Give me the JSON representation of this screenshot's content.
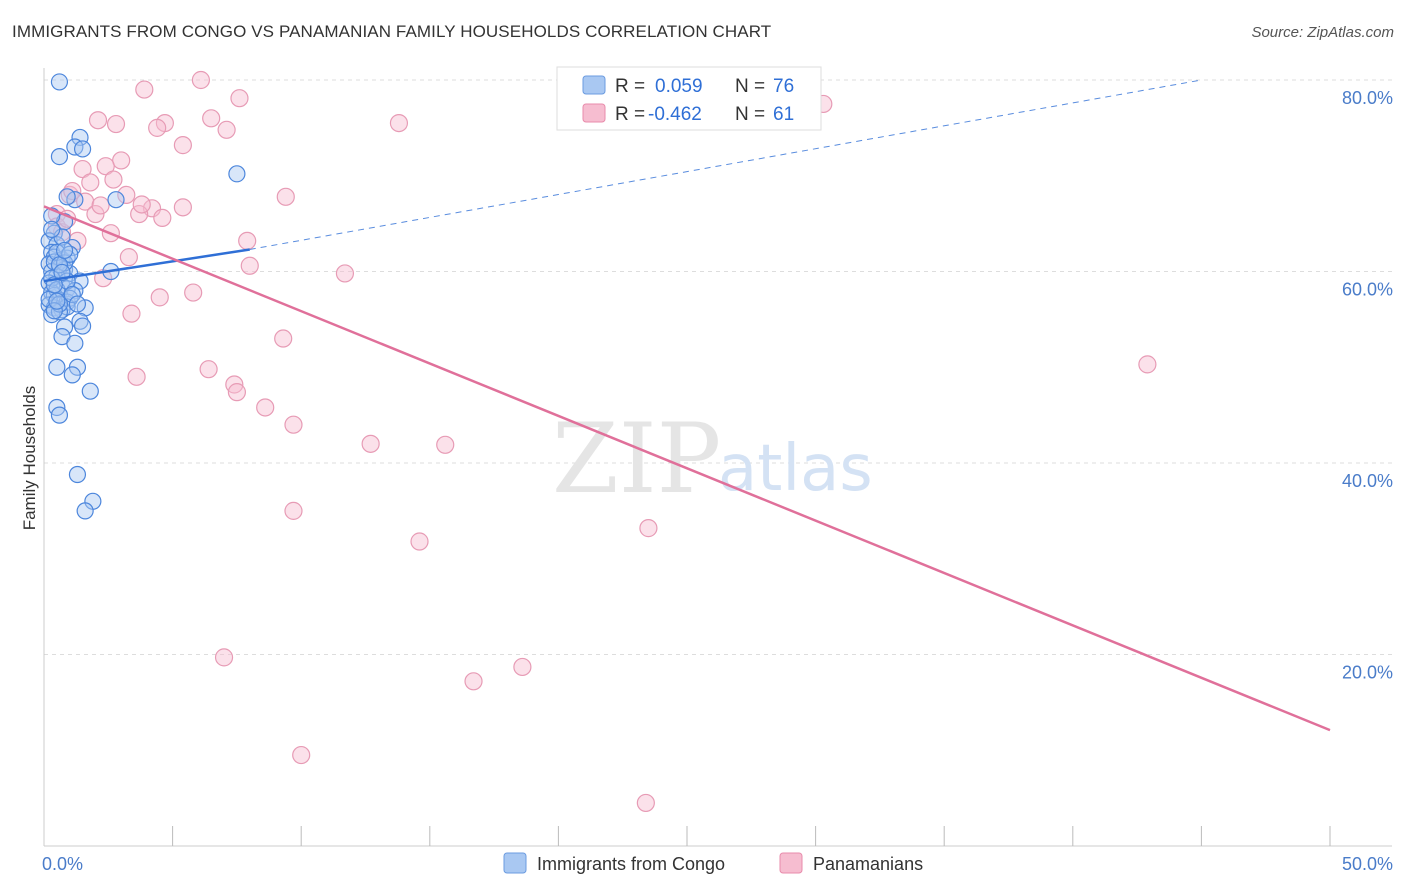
{
  "header": {
    "title": "IMMIGRANTS FROM CONGO VS PANAMANIAN FAMILY HOUSEHOLDS CORRELATION CHART",
    "source": "Source: ZipAtlas.com"
  },
  "watermark": {
    "zip": "ZIP",
    "atlas": "atlas"
  },
  "colors": {
    "blue": "#2f6fd6",
    "blue_fill": "#a9c8f2",
    "pink": "#e0709a",
    "pink_fill": "#f6bdd0",
    "grid": "#dddddd",
    "axis_text": "#4a7cc9"
  },
  "legend": {
    "r_label": "R =",
    "n_label": "N =",
    "rows": [
      {
        "r": "0.059",
        "n": "76"
      },
      {
        "r": "-0.462",
        "n": "61"
      }
    ]
  },
  "bottom_legend": [
    "Immigrants from Congo",
    "Panamanians"
  ],
  "chart_data": {
    "type": "scatter",
    "title": "IMMIGRANTS FROM CONGO VS PANAMANIAN FAMILY HOUSEHOLDS CORRELATION CHART",
    "xlabel": "",
    "ylabel": "Family Households",
    "xlim": [
      0,
      50
    ],
    "ylim": [
      0,
      82
    ],
    "x_tick_labels": [
      "0.0%",
      "50.0%"
    ],
    "y_ticks": [
      20,
      40,
      60,
      80
    ],
    "y_tick_labels": [
      "20.0%",
      "40.0%",
      "60.0%",
      "80.0%"
    ],
    "series": [
      {
        "name": "Immigrants from Congo",
        "R": 0.059,
        "N": 76,
        "trend": {
          "x": [
            0,
            8
          ],
          "y": [
            59.0,
            62.3
          ]
        },
        "trend_extended": {
          "x": [
            8,
            45
          ],
          "y": [
            62.3,
            80.0
          ]
        },
        "points": [
          [
            0.6,
            79.8
          ],
          [
            1.4,
            74.0
          ],
          [
            1.2,
            73.0
          ],
          [
            0.6,
            72.0
          ],
          [
            1.5,
            72.8
          ],
          [
            7.5,
            70.2
          ],
          [
            2.8,
            67.5
          ],
          [
            1.2,
            67.5
          ],
          [
            0.9,
            67.8
          ],
          [
            0.8,
            65.2
          ],
          [
            0.3,
            65.8
          ],
          [
            0.4,
            64.0
          ],
          [
            0.2,
            63.2
          ],
          [
            0.5,
            62.8
          ],
          [
            1.1,
            62.5
          ],
          [
            0.3,
            62.0
          ],
          [
            0.4,
            61.5
          ],
          [
            0.7,
            61.2
          ],
          [
            0.9,
            61.4
          ],
          [
            0.2,
            60.8
          ],
          [
            0.6,
            60.4
          ],
          [
            0.3,
            60.0
          ],
          [
            0.8,
            60.2
          ],
          [
            1.0,
            59.8
          ],
          [
            0.5,
            59.5
          ],
          [
            2.6,
            60.0
          ],
          [
            1.4,
            59.0
          ],
          [
            0.2,
            58.8
          ],
          [
            0.7,
            58.5
          ],
          [
            0.9,
            58.2
          ],
          [
            1.2,
            58.0
          ],
          [
            0.3,
            57.8
          ],
          [
            0.4,
            57.5
          ],
          [
            0.6,
            57.0
          ],
          [
            0.9,
            56.8
          ],
          [
            1.0,
            57.2
          ],
          [
            0.2,
            56.5
          ],
          [
            0.4,
            56.2
          ],
          [
            0.7,
            56.0
          ],
          [
            0.9,
            56.3
          ],
          [
            1.6,
            56.2
          ],
          [
            0.3,
            55.5
          ],
          [
            0.6,
            55.8
          ],
          [
            1.4,
            54.8
          ],
          [
            0.8,
            54.2
          ],
          [
            1.5,
            54.3
          ],
          [
            0.7,
            53.2
          ],
          [
            1.2,
            52.5
          ],
          [
            0.5,
            50.0
          ],
          [
            1.3,
            50.0
          ],
          [
            1.1,
            49.2
          ],
          [
            1.8,
            47.5
          ],
          [
            0.5,
            45.8
          ],
          [
            0.6,
            45.0
          ],
          [
            1.3,
            38.8
          ],
          [
            1.9,
            36.0
          ],
          [
            1.6,
            35.0
          ],
          [
            0.4,
            61.0
          ],
          [
            0.5,
            62.0
          ],
          [
            0.8,
            60.9
          ],
          [
            0.3,
            59.3
          ],
          [
            0.5,
            58.1
          ],
          [
            0.2,
            57.1
          ],
          [
            0.6,
            56.6
          ],
          [
            0.4,
            55.9
          ],
          [
            1.0,
            61.8
          ],
          [
            0.7,
            63.6
          ],
          [
            0.9,
            59.0
          ],
          [
            1.1,
            57.6
          ],
          [
            0.3,
            64.4
          ],
          [
            0.6,
            60.7
          ],
          [
            0.8,
            62.2
          ],
          [
            0.5,
            56.9
          ],
          [
            0.4,
            58.6
          ],
          [
            0.7,
            59.9
          ],
          [
            1.3,
            56.6
          ]
        ]
      },
      {
        "name": "Panamanians",
        "R": -0.462,
        "N": 61,
        "trend": {
          "x": [
            0,
            50
          ],
          "y": [
            66.8,
            12.1
          ]
        },
        "points": [
          [
            6.1,
            80.0
          ],
          [
            3.9,
            79.0
          ],
          [
            7.6,
            78.1
          ],
          [
            30.3,
            77.5
          ],
          [
            2.1,
            75.8
          ],
          [
            6.5,
            76.0
          ],
          [
            4.7,
            75.5
          ],
          [
            13.8,
            75.5
          ],
          [
            2.8,
            75.4
          ],
          [
            4.4,
            75.0
          ],
          [
            7.1,
            74.8
          ],
          [
            5.4,
            73.2
          ],
          [
            3.0,
            71.6
          ],
          [
            2.4,
            71.0
          ],
          [
            1.5,
            70.7
          ],
          [
            2.7,
            69.6
          ],
          [
            1.0,
            68.0
          ],
          [
            3.2,
            68.0
          ],
          [
            9.4,
            67.8
          ],
          [
            1.6,
            67.3
          ],
          [
            4.2,
            66.6
          ],
          [
            5.4,
            66.7
          ],
          [
            2.0,
            66.0
          ],
          [
            3.7,
            66.0
          ],
          [
            4.6,
            65.6
          ],
          [
            0.5,
            66.0
          ],
          [
            0.5,
            64.7
          ],
          [
            2.6,
            64.0
          ],
          [
            1.3,
            63.2
          ],
          [
            7.9,
            63.2
          ],
          [
            3.3,
            61.5
          ],
          [
            8.0,
            60.6
          ],
          [
            11.7,
            59.8
          ],
          [
            2.3,
            59.3
          ],
          [
            5.8,
            57.8
          ],
          [
            4.5,
            57.3
          ],
          [
            3.4,
            55.6
          ],
          [
            9.3,
            53.0
          ],
          [
            42.9,
            50.3
          ],
          [
            6.4,
            49.8
          ],
          [
            3.6,
            49.0
          ],
          [
            7.4,
            48.2
          ],
          [
            7.5,
            47.4
          ],
          [
            8.6,
            45.8
          ],
          [
            9.7,
            44.0
          ],
          [
            12.7,
            42.0
          ],
          [
            15.6,
            41.9
          ],
          [
            9.7,
            35.0
          ],
          [
            23.5,
            33.2
          ],
          [
            14.6,
            31.8
          ],
          [
            7.0,
            19.7
          ],
          [
            18.6,
            18.7
          ],
          [
            16.7,
            17.2
          ],
          [
            10.0,
            9.5
          ],
          [
            23.4,
            4.5
          ],
          [
            1.1,
            68.4
          ],
          [
            2.2,
            66.9
          ],
          [
            0.7,
            64.1
          ],
          [
            1.8,
            69.3
          ],
          [
            3.8,
            67.0
          ],
          [
            0.9,
            65.5
          ]
        ]
      }
    ]
  }
}
